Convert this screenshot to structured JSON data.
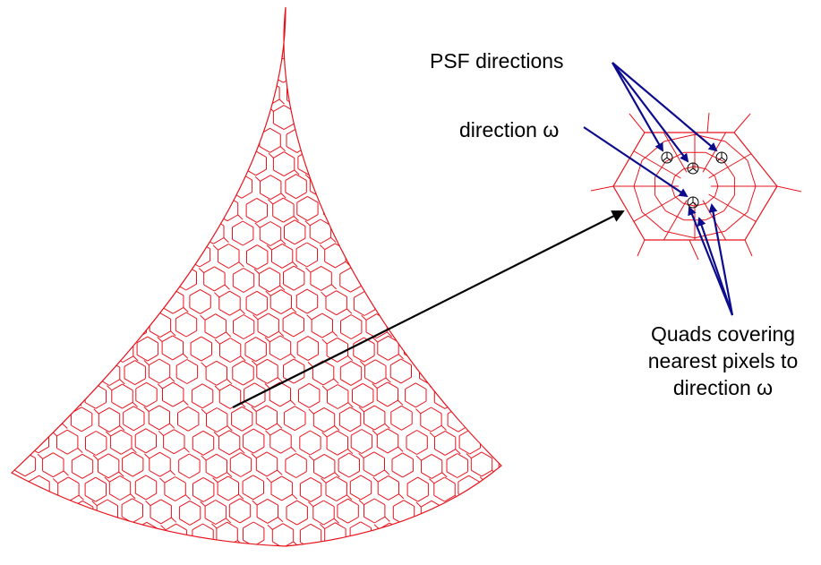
{
  "labels": {
    "psf_directions": "PSF directions",
    "direction_omega": "direction ω",
    "quads_line1": "Quads covering",
    "quads_line2": "nearest pixels to",
    "quads_line3": "direction ω"
  },
  "colors": {
    "mesh": "#e8121c",
    "pointer": "#0c0c8c",
    "arrow": "#000000",
    "background": "#ffffff"
  }
}
